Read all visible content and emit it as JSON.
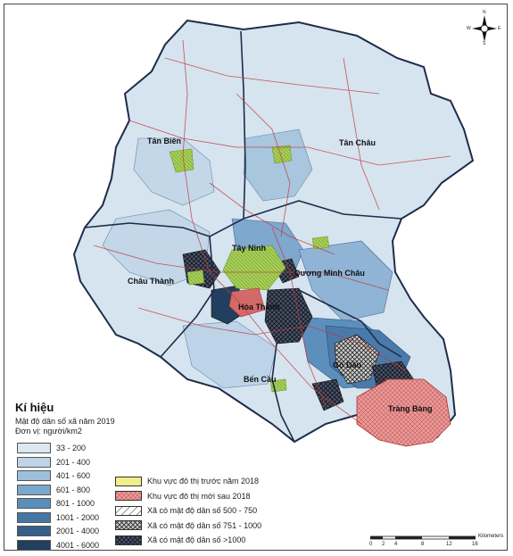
{
  "legend": {
    "title": "Kí hiệu",
    "subtitle": "Mật độ dân số xã năm 2019",
    "unit": "Đơn vị: người/km2",
    "density_classes": [
      {
        "label": "33 - 200",
        "color": "#dbe7f1"
      },
      {
        "label": "201 - 400",
        "color": "#bfd4e6"
      },
      {
        "label": "401 - 600",
        "color": "#9dbfdb"
      },
      {
        "label": "601 - 800",
        "color": "#7aa7cc"
      },
      {
        "label": "801 - 1000",
        "color": "#5b8fbb"
      },
      {
        "label": "1001 - 2000",
        "color": "#4677a4"
      },
      {
        "label": "2001 - 4000",
        "color": "#34608a"
      },
      {
        "label": "4001 - 6000",
        "color": "#233f60"
      }
    ],
    "area_classes": [
      {
        "label": "Khu vực đô thị trước năm 2018",
        "color": "#f2ee8a"
      },
      {
        "label": "Khu vực đô thị mới sau 2018",
        "color": "#e39a9a"
      },
      {
        "label": "Xã có mật độ dân số 500 - 750",
        "color": "#ffffff"
      },
      {
        "label": "Xã có mật độ dân số 751 - 1000",
        "color": "#cccccc"
      },
      {
        "label": "Xã có mật độ dân số >1000",
        "color": "#555555"
      }
    ]
  },
  "places": [
    {
      "name": "Tân Biên"
    },
    {
      "name": "Tân Châu"
    },
    {
      "name": "Tây Ninh"
    },
    {
      "name": "Dương Minh Châu"
    },
    {
      "name": "Châu Thành"
    },
    {
      "name": "Hòa Thành"
    },
    {
      "name": "Gò Dầu"
    },
    {
      "name": "Bến Cầu"
    },
    {
      "name": "Trảng Bàng"
    }
  ],
  "scale": {
    "unit": "Kilometers",
    "ticks": [
      "0",
      "2",
      "4",
      "8",
      "12",
      "16"
    ]
  },
  "compass": {
    "n": "N",
    "s": "S",
    "e": "E",
    "w": "W"
  }
}
